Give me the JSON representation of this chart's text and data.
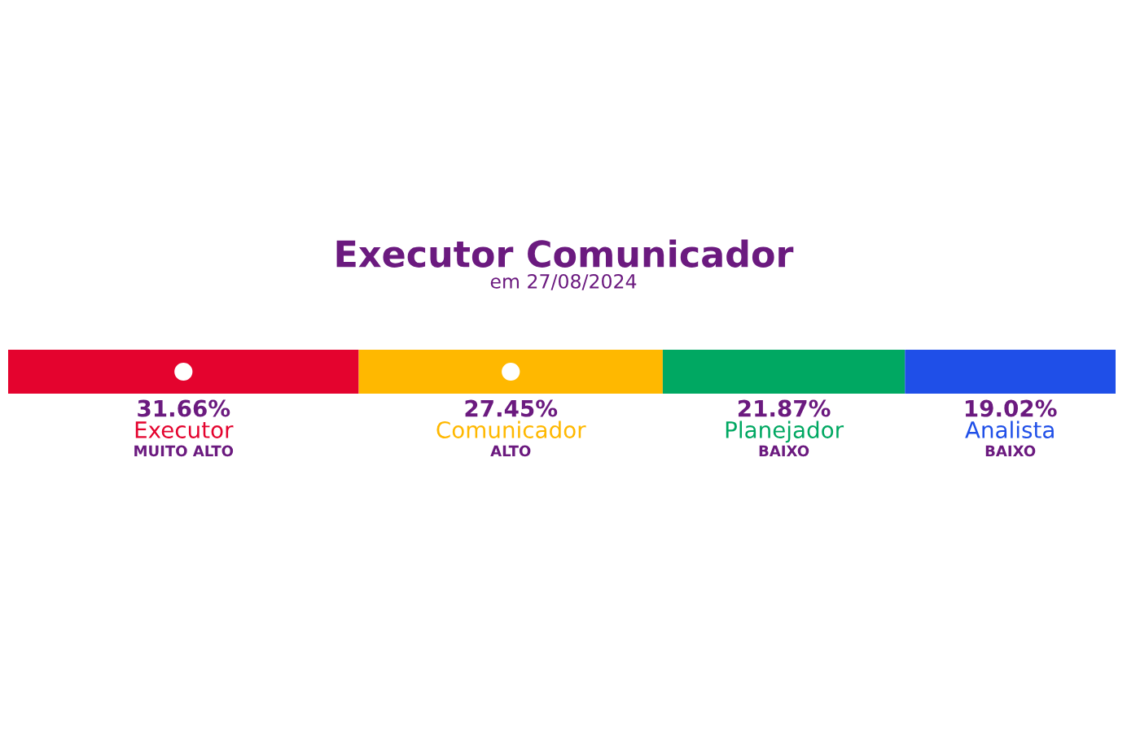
{
  "chart_data": {
    "type": "bar",
    "orientation": "horizontal",
    "stacked": true,
    "title": "Executor Comunicador",
    "subtitle": "em 27/08/2024",
    "categories": [
      null
    ],
    "series": [
      {
        "name": "Executor",
        "color": "#e4032e",
        "values": [
          31.66
        ],
        "value_labels": [
          "31.66%"
        ]
      },
      {
        "name": "Comunicador",
        "color": "#ffb800",
        "values": [
          27.45
        ],
        "value_labels": [
          "27.45%"
        ]
      },
      {
        "name": "Planejador",
        "color": "#00a862",
        "values": [
          21.87
        ],
        "value_labels": [
          "21.87%"
        ]
      },
      {
        "name": "Analista",
        "color": "#1f4fe8",
        "values": [
          19.02
        ],
        "value_labels": [
          "19.02%"
        ]
      }
    ],
    "annotations": [
      "MUITO ALTO",
      "ALTO",
      "BAIXO",
      "BAIXO"
    ]
  }
}
